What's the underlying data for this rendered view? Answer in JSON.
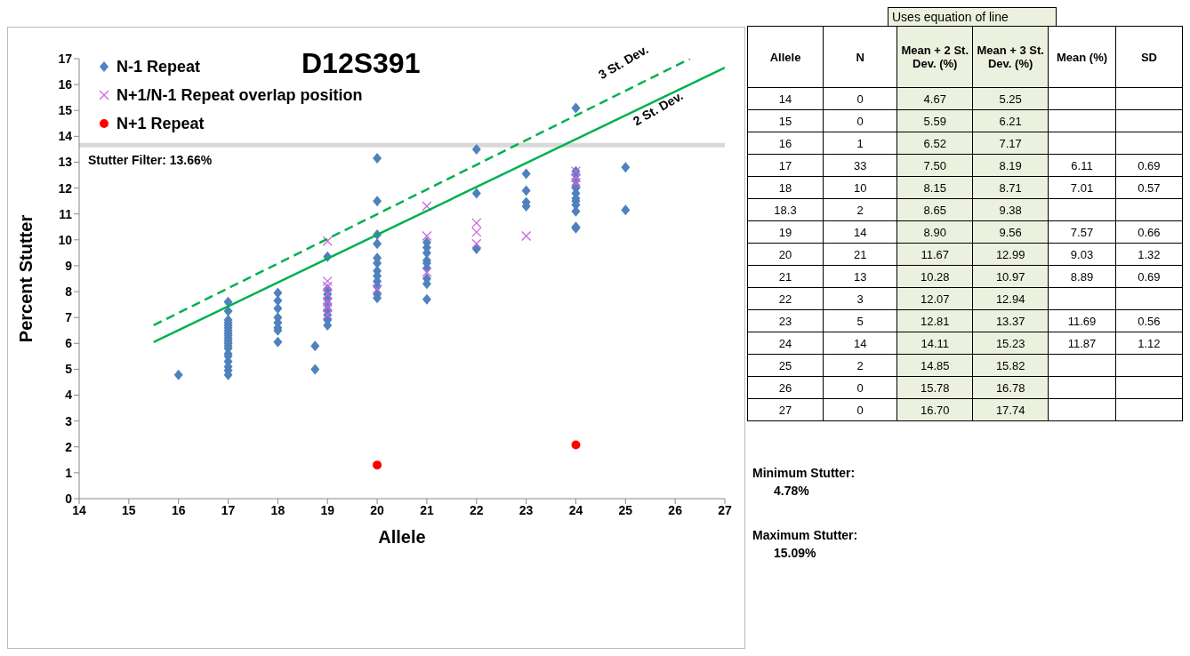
{
  "chart_data": [
    {
      "type": "scatter",
      "title": "D12S391",
      "xlabel": "Allele",
      "ylabel": "Percent Stutter",
      "xlim": [
        14,
        27
      ],
      "xticks": [
        14,
        15,
        16,
        17,
        18,
        19,
        20,
        21,
        22,
        23,
        24,
        25,
        26,
        27
      ],
      "ylim": [
        0,
        17
      ],
      "yticks": [
        0,
        1,
        2,
        3,
        4,
        5,
        6,
        7,
        8,
        9,
        10,
        11,
        12,
        13,
        14,
        15,
        16,
        17
      ],
      "legend": "top left",
      "series": [
        {
          "name": "N-1 Repeat",
          "color": "#4f81bd",
          "marker": "diamond",
          "x": [
            16,
            17,
            17,
            17,
            17,
            17,
            17,
            17,
            17,
            17,
            17,
            17,
            17,
            17,
            17,
            17,
            17,
            17,
            17,
            17,
            17,
            18,
            18,
            18,
            18,
            18,
            18,
            18,
            18,
            18.75,
            18.75,
            19,
            19,
            19,
            19,
            19,
            19,
            19,
            19,
            19,
            20,
            20,
            20,
            20,
            20,
            20,
            20,
            20,
            20,
            20,
            20,
            20,
            21,
            21,
            21,
            21,
            21,
            21,
            21,
            21,
            21,
            22,
            22,
            22,
            23,
            23,
            23,
            23,
            24,
            24,
            24,
            24,
            24,
            24,
            24,
            24,
            24,
            24,
            24,
            24,
            24,
            25,
            25
          ],
          "values": [
            4.78,
            7.6,
            7.25,
            6.9,
            6.8,
            6.7,
            6.6,
            6.5,
            6.4,
            6.3,
            6.2,
            6.1,
            6.0,
            5.9,
            5.8,
            5.6,
            5.5,
            5.3,
            5.1,
            4.95,
            4.78,
            7.95,
            7.65,
            7.35,
            7.0,
            6.8,
            6.6,
            6.5,
            6.05,
            5.9,
            5.0,
            9.35,
            8.1,
            7.9,
            7.7,
            7.5,
            7.3,
            7.1,
            6.9,
            6.7,
            13.15,
            11.5,
            10.2,
            9.85,
            9.3,
            9.1,
            8.8,
            8.6,
            8.4,
            8.2,
            7.9,
            7.75,
            9.9,
            9.7,
            9.5,
            9.2,
            9.1,
            8.9,
            8.5,
            8.3,
            7.7,
            13.5,
            11.8,
            9.65,
            12.55,
            11.9,
            11.45,
            11.3,
            15.09,
            12.65,
            12.5,
            12.3,
            12.1,
            12.0,
            11.8,
            11.6,
            11.5,
            11.35,
            11.1,
            10.5,
            10.45,
            12.8,
            11.15
          ]
        },
        {
          "name": "N+1/N-1 Repeat overlap position",
          "color": "#cc66dd",
          "marker": "cross",
          "x": [
            19,
            19,
            19,
            19,
            19,
            19,
            19,
            20,
            21,
            21,
            21,
            22,
            22,
            22,
            23,
            24,
            24,
            24
          ],
          "values": [
            9.95,
            8.4,
            8.2,
            7.9,
            7.6,
            7.4,
            7.1,
            8.1,
            11.3,
            10.15,
            8.75,
            10.65,
            10.3,
            9.85,
            10.15,
            12.65,
            12.4,
            12.2
          ]
        },
        {
          "name": "N+1 Repeat",
          "color": "#ff0000",
          "marker": "circle",
          "x": [
            20,
            24
          ],
          "values": [
            1.3,
            2.08
          ]
        },
        {
          "name": "3 St. Dev.",
          "type": "line",
          "color": "#00b050",
          "line_style": "dashed",
          "marker": "none",
          "x": [
            15.5,
            26.3
          ],
          "values": [
            6.7,
            17
          ]
        },
        {
          "name": "2 St. Dev.",
          "type": "line",
          "color": "#00b050",
          "line_style": "solid",
          "marker": "none",
          "x": [
            15.5,
            27
          ],
          "values": [
            6.05,
            16.65
          ]
        }
      ],
      "ref_lines": [
        {
          "axis": "y",
          "value": 13.66,
          "label": "Stutter Filter: 13.66%",
          "color": "#d9d9d9"
        }
      ]
    },
    {
      "type": "other",
      "title": "Uses equation of line",
      "categories": [
        "Allele",
        "N",
        "Mean + 2 St. Dev. (%)",
        "Mean + 3 St. Dev. (%)",
        "Mean (%)",
        "SD"
      ],
      "cells": [
        [
          "14",
          "0",
          "4.67",
          "5.25",
          null,
          null
        ],
        [
          "15",
          "0",
          "5.59",
          "6.21",
          null,
          null
        ],
        [
          "16",
          "1",
          "6.52",
          "7.17",
          null,
          null
        ],
        [
          "17",
          "33",
          "7.50",
          "8.19",
          "6.11",
          "0.69"
        ],
        [
          "18",
          "10",
          "8.15",
          "8.71",
          "7.01",
          "0.57"
        ],
        [
          "18.3",
          "2",
          "8.65",
          "9.38",
          null,
          null
        ],
        [
          "19",
          "14",
          "8.90",
          "9.56",
          "7.57",
          "0.66"
        ],
        [
          "20",
          "21",
          "11.67",
          "12.99",
          "9.03",
          "1.32"
        ],
        [
          "21",
          "13",
          "10.28",
          "10.97",
          "8.89",
          "0.69"
        ],
        [
          "22",
          "3",
          "12.07",
          "12.94",
          null,
          null
        ],
        [
          "23",
          "5",
          "12.81",
          "13.37",
          "11.69",
          "0.56"
        ],
        [
          "24",
          "14",
          "14.11",
          "15.23",
          "11.87",
          "1.12"
        ],
        [
          "25",
          "2",
          "14.85",
          "15.82",
          null,
          null
        ],
        [
          "26",
          "0",
          "15.78",
          "16.78",
          null,
          null
        ],
        [
          "27",
          "0",
          "16.70",
          "17.74",
          null,
          null
        ]
      ],
      "annotations": [
        "Minimum Stutter:",
        "4.78%",
        "Maximum Stutter:",
        "15.09%"
      ]
    }
  ]
}
